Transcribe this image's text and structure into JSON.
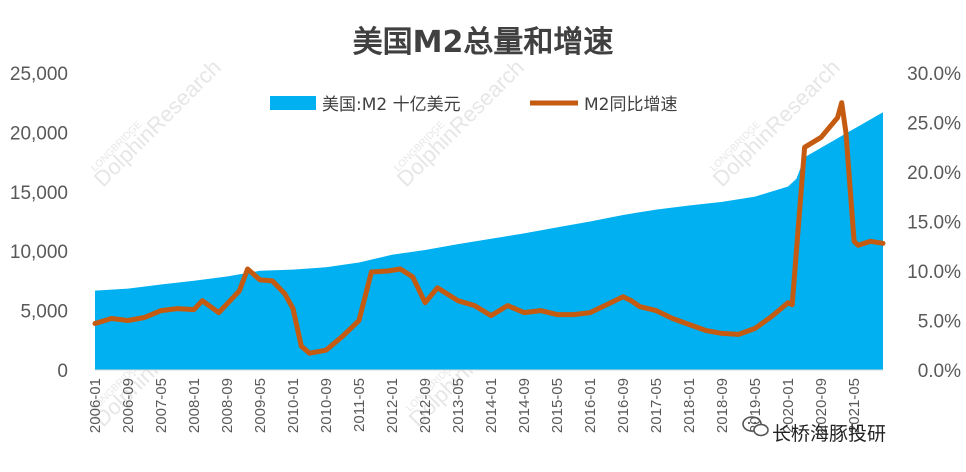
{
  "watermark": {
    "small": "LONGBRIDGE",
    "large": "DolphinResearch"
  },
  "wechat_label": "长桥海豚投研",
  "colors": {
    "area": "#00b0f0",
    "line": "#c55a11",
    "text": "#595959",
    "title": "#404040"
  },
  "chart_data": {
    "type": "area+line",
    "title": "美国M2总量和增速",
    "legend_position": "top",
    "grid": false,
    "x_tick_labels": [
      "2006-01",
      "2006-09",
      "2007-05",
      "2008-01",
      "2008-09",
      "2009-05",
      "2010-01",
      "2010-09",
      "2011-05",
      "2012-01",
      "2012-09",
      "2013-05",
      "2014-01",
      "2014-09",
      "2015-05",
      "2016-01",
      "2016-09",
      "2017-05",
      "2018-01",
      "2018-09",
      "2019-05",
      "2020-01",
      "2020-09",
      "2021-05"
    ],
    "x_range": [
      "2006-01",
      "2021-12"
    ],
    "y_left": {
      "range": [
        0,
        25000
      ],
      "ticks": [
        0,
        5000,
        10000,
        15000,
        20000,
        25000
      ],
      "tick_labels": [
        "0",
        "5,000",
        "10,000",
        "15,000",
        "20,000",
        "25,000"
      ]
    },
    "y_right": {
      "range": [
        0,
        30
      ],
      "ticks": [
        0,
        5,
        10,
        15,
        20,
        25,
        30
      ],
      "tick_labels": [
        "0.0%",
        "5.0%",
        "10.0%",
        "15.0%",
        "20.0%",
        "25.0%",
        "30.0%"
      ]
    },
    "series": [
      {
        "name": "美国:M2 十亿美元",
        "type": "area",
        "axis": "left",
        "points": [
          [
            "2006-01",
            6680
          ],
          [
            "2006-09",
            6850
          ],
          [
            "2007-05",
            7200
          ],
          [
            "2008-01",
            7520
          ],
          [
            "2008-09",
            7870
          ],
          [
            "2009-05",
            8350
          ],
          [
            "2010-01",
            8450
          ],
          [
            "2010-09",
            8650
          ],
          [
            "2011-05",
            9050
          ],
          [
            "2012-01",
            9700
          ],
          [
            "2012-09",
            10100
          ],
          [
            "2013-05",
            10600
          ],
          [
            "2014-01",
            11050
          ],
          [
            "2014-09",
            11500
          ],
          [
            "2015-05",
            12000
          ],
          [
            "2016-01",
            12500
          ],
          [
            "2016-09",
            13050
          ],
          [
            "2017-05",
            13500
          ],
          [
            "2018-01",
            13850
          ],
          [
            "2018-09",
            14150
          ],
          [
            "2019-05",
            14600
          ],
          [
            "2020-01",
            15450
          ],
          [
            "2020-03",
            16100
          ],
          [
            "2020-05",
            17900
          ],
          [
            "2020-09",
            18700
          ],
          [
            "2021-05",
            20300
          ],
          [
            "2021-12",
            21700
          ]
        ]
      },
      {
        "name": "M2同比增速",
        "type": "line",
        "axis": "right",
        "points": [
          [
            "2006-01",
            4.7
          ],
          [
            "2006-05",
            5.2
          ],
          [
            "2006-09",
            5.0
          ],
          [
            "2007-01",
            5.3
          ],
          [
            "2007-05",
            6.0
          ],
          [
            "2007-09",
            6.2
          ],
          [
            "2008-01",
            6.1
          ],
          [
            "2008-03",
            7.0
          ],
          [
            "2008-07",
            5.8
          ],
          [
            "2008-12",
            8.0
          ],
          [
            "2009-02",
            10.2
          ],
          [
            "2009-05",
            9.1
          ],
          [
            "2009-08",
            9.0
          ],
          [
            "2009-11",
            7.7
          ],
          [
            "2010-01",
            6.2
          ],
          [
            "2010-03",
            2.4
          ],
          [
            "2010-05",
            1.7
          ],
          [
            "2010-09",
            2.0
          ],
          [
            "2011-01",
            3.4
          ],
          [
            "2011-05",
            5.0
          ],
          [
            "2011-08",
            9.9
          ],
          [
            "2011-12",
            10.0
          ],
          [
            "2012-03",
            10.2
          ],
          [
            "2012-06",
            9.4
          ],
          [
            "2012-09",
            6.8
          ],
          [
            "2012-12",
            8.3
          ],
          [
            "2013-05",
            7.0
          ],
          [
            "2013-09",
            6.5
          ],
          [
            "2014-01",
            5.5
          ],
          [
            "2014-05",
            6.5
          ],
          [
            "2014-09",
            5.8
          ],
          [
            "2015-01",
            6.0
          ],
          [
            "2015-05",
            5.6
          ],
          [
            "2015-09",
            5.6
          ],
          [
            "2016-01",
            5.8
          ],
          [
            "2016-05",
            6.6
          ],
          [
            "2016-09",
            7.4
          ],
          [
            "2016-11",
            7.0
          ],
          [
            "2017-01",
            6.4
          ],
          [
            "2017-05",
            6.0
          ],
          [
            "2017-09",
            5.2
          ],
          [
            "2018-01",
            4.6
          ],
          [
            "2018-05",
            4.0
          ],
          [
            "2018-09",
            3.7
          ],
          [
            "2019-01",
            3.6
          ],
          [
            "2019-05",
            4.2
          ],
          [
            "2019-09",
            5.4
          ],
          [
            "2020-01",
            6.8
          ],
          [
            "2020-02",
            6.6
          ],
          [
            "2020-03",
            12.0
          ],
          [
            "2020-05",
            22.5
          ],
          [
            "2020-09",
            23.5
          ],
          [
            "2021-01",
            25.5
          ],
          [
            "2021-02",
            27.0
          ],
          [
            "2021-03",
            24.0
          ],
          [
            "2021-05",
            13.0
          ],
          [
            "2021-06",
            12.6
          ],
          [
            "2021-09",
            13.0
          ],
          [
            "2021-12",
            12.8
          ]
        ]
      }
    ]
  }
}
